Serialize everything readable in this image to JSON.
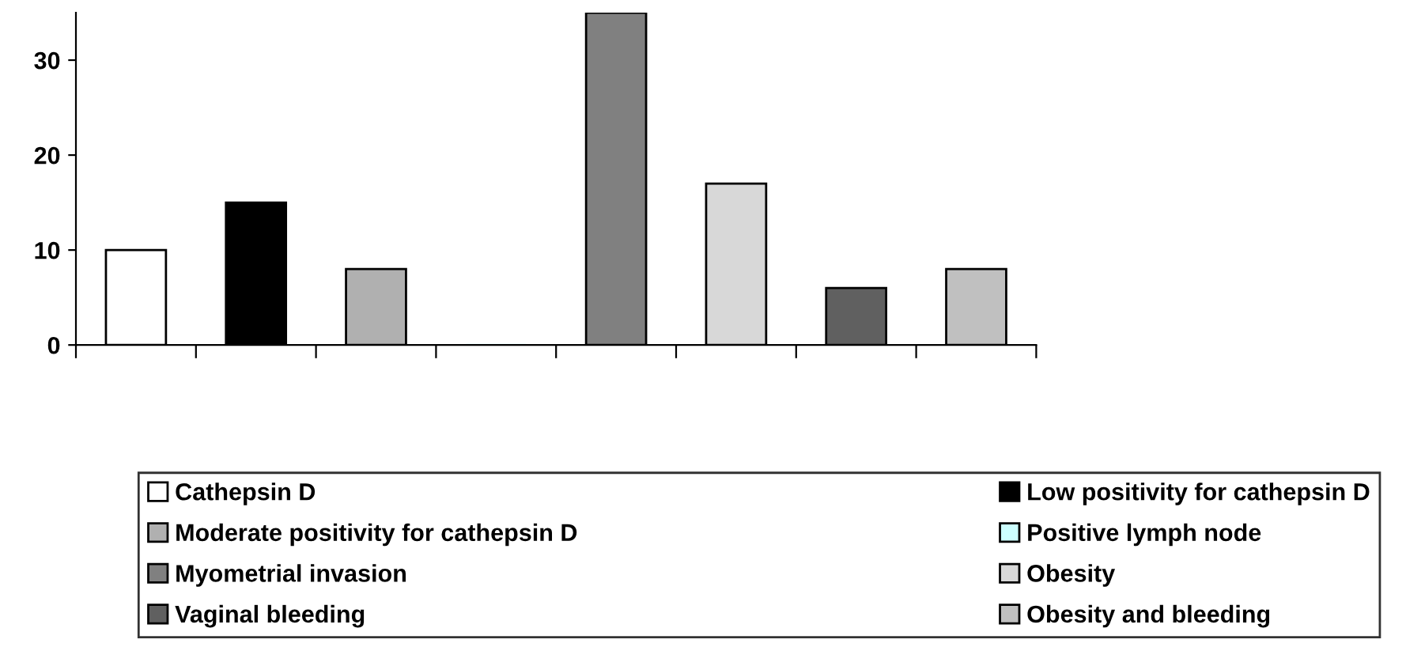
{
  "chart_data": {
    "type": "bar",
    "categories": [
      null,
      null,
      null,
      null,
      null,
      null,
      null,
      null
    ],
    "series": [
      {
        "name": "Cathepsin D",
        "color": "#ffffff",
        "values": [
          10,
          null,
          null,
          null,
          null,
          null,
          null,
          null
        ]
      },
      {
        "name": "Low positivity for cathepsin D",
        "color": "#000000",
        "values": [
          null,
          15,
          null,
          null,
          null,
          null,
          null,
          null
        ]
      },
      {
        "name": "Moderate positivity for cathepsin D",
        "color": "#b0b0b0",
        "values": [
          null,
          null,
          8,
          null,
          null,
          null,
          null,
          null
        ]
      },
      {
        "name": "Positive lymph node",
        "color": "#ccffff",
        "values": [
          null,
          null,
          null,
          0,
          null,
          null,
          null,
          null
        ]
      },
      {
        "name": "Myometrial invasion",
        "color": "#808080",
        "values": [
          null,
          null,
          null,
          null,
          35,
          null,
          null,
          null
        ]
      },
      {
        "name": "Obesity",
        "color": "#d8d8d8",
        "values": [
          null,
          null,
          null,
          null,
          null,
          17,
          null,
          null
        ]
      },
      {
        "name": "Vaginal bleeding",
        "color": "#606060",
        "values": [
          null,
          null,
          null,
          null,
          null,
          null,
          6,
          null
        ]
      },
      {
        "name": "Obesity and bleeding",
        "color": "#c0c0c0",
        "values": [
          null,
          null,
          null,
          null,
          null,
          null,
          null,
          8
        ]
      }
    ],
    "ylim": [
      0,
      35
    ],
    "yticks": [
      0,
      10,
      20,
      30
    ],
    "grid": false,
    "legend": "bottom"
  }
}
